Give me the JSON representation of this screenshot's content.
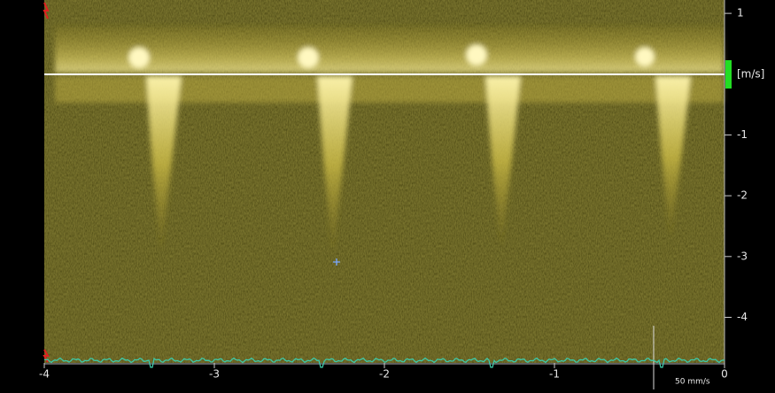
{
  "velocity_axis": {
    "unit": "[m/s]",
    "range": [
      1.22,
      -4.75
    ],
    "ticks": [
      1,
      -1,
      -2,
      -3,
      -4
    ]
  },
  "time_axis": {
    "range": [
      -4,
      0
    ],
    "ticks": [
      -4,
      -3,
      -2,
      -1,
      0
    ]
  },
  "sweep_speed": "50 mm/s"
}
